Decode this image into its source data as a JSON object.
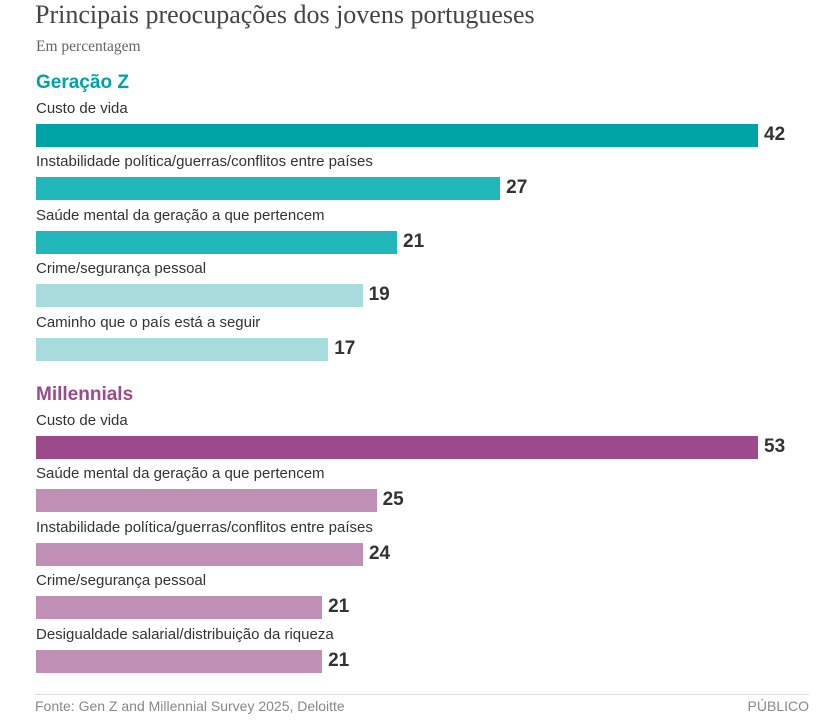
{
  "chart_data": {
    "type": "bar",
    "orientation": "horizontal",
    "title": "Principais preocupações dos jovens portugueses",
    "subtitle": "Em percentagem",
    "source": "Fonte: Gen Z and Millennial Survey 2025, Deloitte",
    "brand": "PÚBLICO",
    "groups": [
      {
        "name": "Geração Z",
        "color": "#00a3a3",
        "categories": [
          "Custo de vida",
          "Instabilidade política/guerras/conflitos entre países",
          "Saúde mental da geração a que pertencem",
          "Crime/segurança pessoal",
          "Caminho que o país está a seguir"
        ],
        "values": [
          42,
          27,
          21,
          19,
          17
        ],
        "bar_colors": [
          "#00a3a3",
          "#22b8bb",
          "#22b8bb",
          "#a8dcdc",
          "#a8dcdc"
        ]
      },
      {
        "name": "Millennials",
        "color": "#9b4a8b",
        "categories": [
          "Custo de vida",
          "Saúde mental da geração a que pertencem",
          "Instabilidade política/guerras/conflitos entre países",
          "Crime/segurança pessoal",
          "Desigualdade salarial/distribuição da riqueza"
        ],
        "values": [
          53,
          25,
          24,
          21,
          21
        ],
        "bar_colors": [
          "#9b4a8b",
          "#bf8fb6",
          "#bf8fb6",
          "#bf8fb6",
          "#bf8fb6"
        ]
      }
    ]
  }
}
